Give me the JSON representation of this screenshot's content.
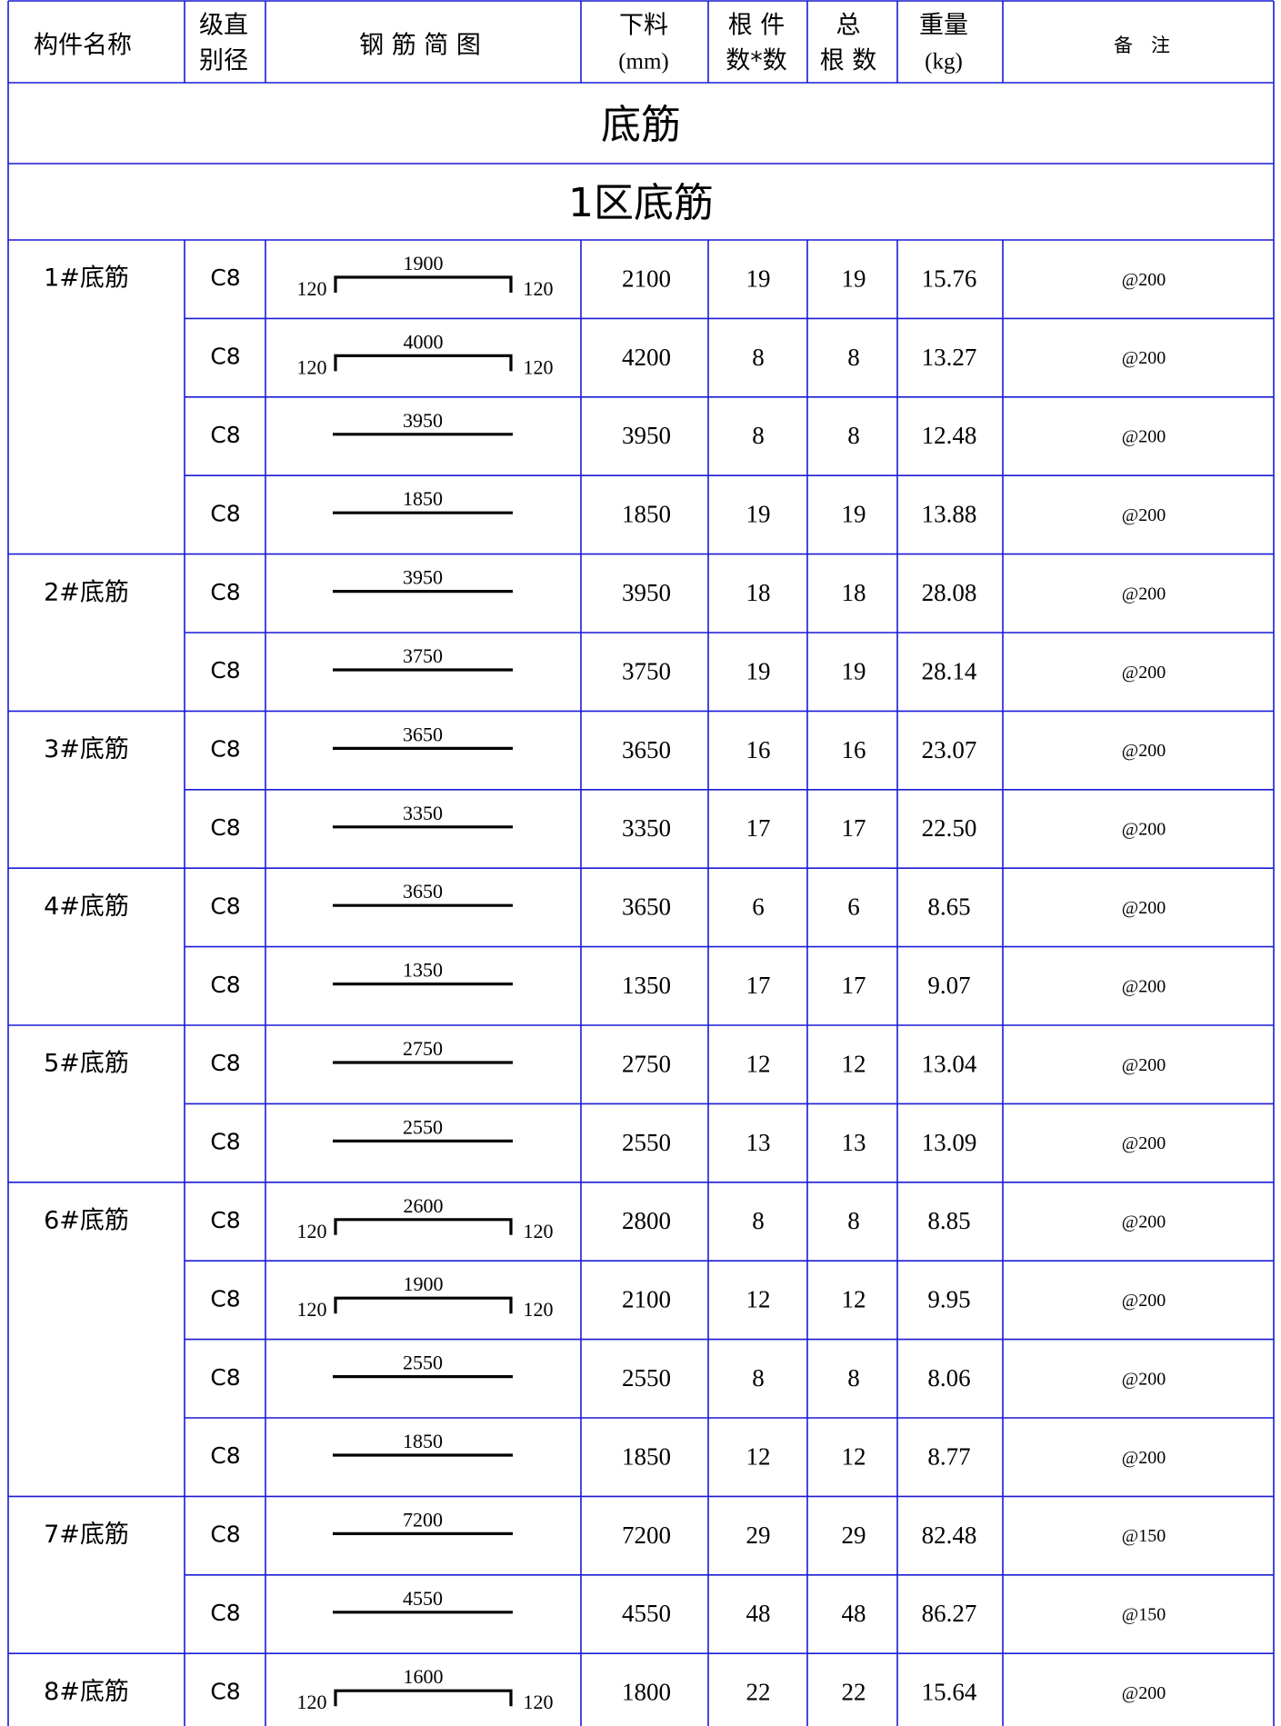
{
  "header": {
    "name": "构件名称",
    "grade_top": "级直",
    "grade_bottom": "别径",
    "shape": "钢 筋 简 图",
    "cut_top": "下料",
    "cut_bottom": "(mm)",
    "count_top": "根 件",
    "count_bottom": "数*数",
    "total_top": "总",
    "total_bottom": "根 数",
    "weight_top": "重量",
    "weight_bottom": "(kg)",
    "note": "备   注"
  },
  "section_title": "底筋",
  "subsection_title": "1区底筋",
  "groups": [
    {
      "name": "1#底筋",
      "rows": [
        {
          "grade": "C8",
          "shape": "hooked",
          "len": "1900",
          "hook_left": "120",
          "hook_right": "120",
          "cut": "2100",
          "count": "19",
          "total": "19",
          "weight": "15.76",
          "note": "@200"
        },
        {
          "grade": "C8",
          "shape": "hooked",
          "len": "4000",
          "hook_left": "120",
          "hook_right": "120",
          "cut": "4200",
          "count": "8",
          "total": "8",
          "weight": "13.27",
          "note": "@200"
        },
        {
          "grade": "C8",
          "shape": "straight",
          "len": "3950",
          "cut": "3950",
          "count": "8",
          "total": "8",
          "weight": "12.48",
          "note": "@200"
        },
        {
          "grade": "C8",
          "shape": "straight",
          "len": "1850",
          "cut": "1850",
          "count": "19",
          "total": "19",
          "weight": "13.88",
          "note": "@200"
        }
      ]
    },
    {
      "name": "2#底筋",
      "rows": [
        {
          "grade": "C8",
          "shape": "straight",
          "len": "3950",
          "cut": "3950",
          "count": "18",
          "total": "18",
          "weight": "28.08",
          "note": "@200"
        },
        {
          "grade": "C8",
          "shape": "straight",
          "len": "3750",
          "cut": "3750",
          "count": "19",
          "total": "19",
          "weight": "28.14",
          "note": "@200"
        }
      ]
    },
    {
      "name": "3#底筋",
      "rows": [
        {
          "grade": "C8",
          "shape": "straight",
          "len": "3650",
          "cut": "3650",
          "count": "16",
          "total": "16",
          "weight": "23.07",
          "note": "@200"
        },
        {
          "grade": "C8",
          "shape": "straight",
          "len": "3350",
          "cut": "3350",
          "count": "17",
          "total": "17",
          "weight": "22.50",
          "note": "@200"
        }
      ]
    },
    {
      "name": "4#底筋",
      "rows": [
        {
          "grade": "C8",
          "shape": "straight",
          "len": "3650",
          "cut": "3650",
          "count": "6",
          "total": "6",
          "weight": "8.65",
          "note": "@200"
        },
        {
          "grade": "C8",
          "shape": "straight",
          "len": "1350",
          "cut": "1350",
          "count": "17",
          "total": "17",
          "weight": "9.07",
          "note": "@200"
        }
      ]
    },
    {
      "name": "5#底筋",
      "rows": [
        {
          "grade": "C8",
          "shape": "straight",
          "len": "2750",
          "cut": "2750",
          "count": "12",
          "total": "12",
          "weight": "13.04",
          "note": "@200"
        },
        {
          "grade": "C8",
          "shape": "straight",
          "len": "2550",
          "cut": "2550",
          "count": "13",
          "total": "13",
          "weight": "13.09",
          "note": "@200"
        }
      ]
    },
    {
      "name": "6#底筋",
      "rows": [
        {
          "grade": "C8",
          "shape": "hooked",
          "len": "2600",
          "hook_left": "120",
          "hook_right": "120",
          "cut": "2800",
          "count": "8",
          "total": "8",
          "weight": "8.85",
          "note": "@200"
        },
        {
          "grade": "C8",
          "shape": "hooked",
          "len": "1900",
          "hook_left": "120",
          "hook_right": "120",
          "cut": "2100",
          "count": "12",
          "total": "12",
          "weight": "9.95",
          "note": "@200"
        },
        {
          "grade": "C8",
          "shape": "straight",
          "len": "2550",
          "cut": "2550",
          "count": "8",
          "total": "8",
          "weight": "8.06",
          "note": "@200"
        },
        {
          "grade": "C8",
          "shape": "straight",
          "len": "1850",
          "cut": "1850",
          "count": "12",
          "total": "12",
          "weight": "8.77",
          "note": "@200"
        }
      ]
    },
    {
      "name": "7#底筋",
      "rows": [
        {
          "grade": "C8",
          "shape": "straight",
          "len": "7200",
          "cut": "7200",
          "count": "29",
          "total": "29",
          "weight": "82.48",
          "note": "@150"
        },
        {
          "grade": "C8",
          "shape": "straight",
          "len": "4550",
          "cut": "4550",
          "count": "48",
          "total": "48",
          "weight": "86.27",
          "note": "@150"
        }
      ]
    },
    {
      "name": "8#底筋",
      "rows": [
        {
          "grade": "C8",
          "shape": "hooked",
          "len": "1600",
          "hook_left": "120",
          "hook_right": "120",
          "cut": "1800",
          "count": "22",
          "total": "22",
          "weight": "15.64",
          "note": "@200"
        }
      ]
    }
  ]
}
